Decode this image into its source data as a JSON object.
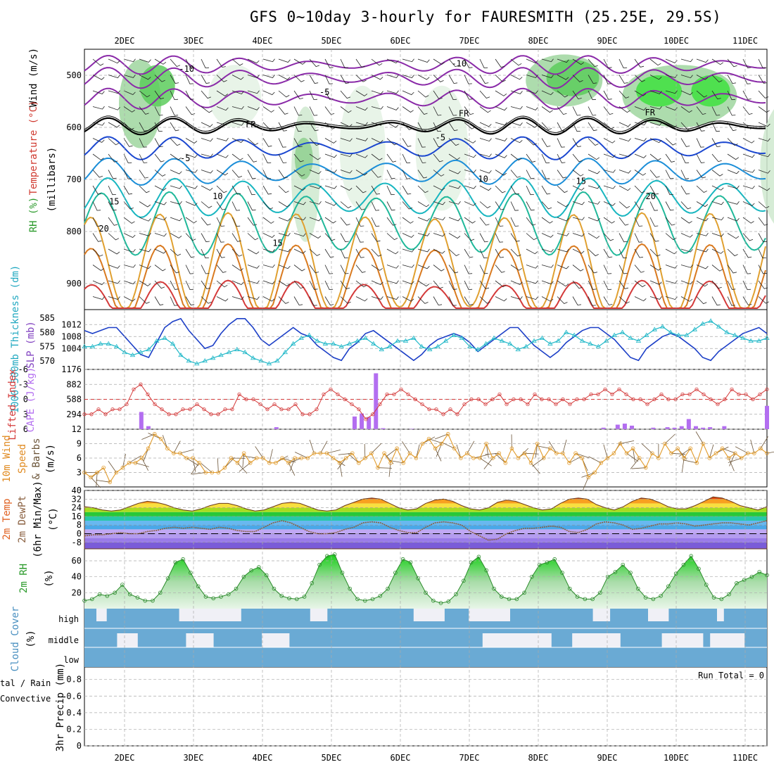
{
  "title": "GFS 0~10day 3-hourly for FAURESMITH (25.25E, 29.5S)",
  "dates": [
    "2DEC",
    "3DEC",
    "4DEC",
    "5DEC",
    "6DEC",
    "7DEC",
    "8DEC",
    "9DEC",
    "10DEC",
    "11DEC"
  ],
  "colors": {
    "sea_level_pressure": "#1c3fc7",
    "thickness": "#20b8c8",
    "lifted_index": "#d43a3a",
    "cape": "#b36ef0",
    "wind_speed": "#e09a2a",
    "barbs": "#6b5438",
    "temperature_fill_hot": "#d23a0e",
    "dewpoint": "#8a6040",
    "rh_fill": "#35c035",
    "cloud": "#6aaad4",
    "cloud_clear": "#f0f0f6"
  },
  "chart_data": [
    {
      "type": "heatmap",
      "panel": "upper-air",
      "ylabel_parts": [
        "Wind (m/s)",
        "Temperature (°C)",
        "RH (%)"
      ],
      "ylabel_units": "(millibars)",
      "y_ticks": [
        500,
        600,
        700,
        800,
        900
      ],
      "ylim": [
        950,
        450
      ],
      "isotherm_labels": [
        {
          "text": "-10",
          "date_index": 0.9,
          "level": 493
        },
        {
          "text": "-10",
          "date_index": 4.85,
          "level": 483
        },
        {
          "text": "-5",
          "date_index": 2.9,
          "level": 538
        },
        {
          "text": "FR",
          "date_index": 1.83,
          "level": 600
        },
        {
          "text": "FR",
          "date_index": 4.92,
          "level": 579
        },
        {
          "text": "FR",
          "date_index": 7.62,
          "level": 577
        },
        {
          "text": "-5",
          "date_index": 4.58,
          "level": 625
        },
        {
          "text": "-5",
          "date_index": 0.88,
          "level": 665
        },
        {
          "text": "10",
          "date_index": 1.35,
          "level": 738
        },
        {
          "text": "10",
          "date_index": 5.2,
          "level": 705
        },
        {
          "text": "15",
          "date_index": -0.15,
          "level": 748
        },
        {
          "text": "15",
          "date_index": 2.22,
          "level": 828
        },
        {
          "text": "15",
          "date_index": 6.62,
          "level": 709
        },
        {
          "text": "20",
          "date_index": -0.3,
          "level": 800
        },
        {
          "text": "20",
          "date_index": 7.63,
          "level": 738
        }
      ]
    },
    {
      "type": "line",
      "panel": "pressure-thickness",
      "series": [
        {
          "name": "SLP (mb)",
          "axis": "right",
          "values": [
            1010,
            1009,
            1010,
            1011,
            1011,
            1008,
            1005,
            1002,
            1001,
            1006,
            1011,
            1013,
            1014,
            1010,
            1007,
            1004,
            1005,
            1009,
            1012,
            1014,
            1014,
            1011,
            1007,
            1005,
            1007,
            1009,
            1011,
            1009,
            1008,
            1005,
            1003,
            1001,
            1000,
            1004,
            1006,
            1009,
            1010,
            1008,
            1006,
            1004,
            1002,
            1000,
            1002,
            1005,
            1007,
            1008,
            1009,
            1008,
            1006,
            1003,
            1005,
            1007,
            1009,
            1011,
            1011,
            1008,
            1005,
            1003,
            1001,
            1003,
            1006,
            1008,
            1010,
            1011,
            1011,
            1009,
            1007,
            1004,
            1001,
            1000,
            1004,
            1006,
            1008,
            1009,
            1008,
            1006,
            1004,
            1001,
            1000,
            1003,
            1005,
            1007,
            1009,
            1010,
            1011,
            1009
          ]
        },
        {
          "name": "1000-500mb Thickness (dm)",
          "axis": "left",
          "values": [
            575,
            575,
            576,
            576,
            575,
            573,
            572,
            573,
            574,
            577,
            578,
            576,
            572,
            570,
            569,
            570,
            571,
            572,
            573,
            574,
            573,
            571,
            570,
            569,
            570,
            573,
            576,
            578,
            579,
            577,
            576,
            576,
            575,
            576,
            577,
            578,
            576,
            574,
            575,
            577,
            577,
            578,
            575,
            574,
            575,
            577,
            579,
            578,
            575,
            574,
            576,
            578,
            577,
            576,
            574,
            575,
            577,
            578,
            576,
            577,
            580,
            579,
            577,
            576,
            575,
            577,
            579,
            580,
            578,
            577,
            579,
            581,
            582,
            580,
            579,
            579,
            581,
            583,
            584,
            582,
            580,
            579,
            578,
            577,
            577,
            578
          ]
        }
      ],
      "left_ticks": [
        570,
        575,
        580,
        585
      ],
      "left_ylim": [
        567,
        588
      ],
      "right_ticks": [
        1004,
        1008,
        1012
      ],
      "right_ylim": [
        997,
        1017
      ]
    },
    {
      "type": "bar",
      "panel": "lifted-index-cape",
      "series": [
        {
          "name": "Lifted Index",
          "axis": "left",
          "kind": "line",
          "values": [
            3,
            3,
            2,
            3,
            2,
            2,
            1,
            -2,
            -3,
            -1,
            1,
            2,
            3,
            3,
            2,
            2,
            1,
            2,
            3,
            3,
            2,
            2,
            -1,
            0,
            0,
            1,
            2,
            1,
            2,
            2,
            1,
            3,
            3,
            2,
            -1,
            -2,
            -1,
            0,
            1,
            2,
            4,
            3,
            1,
            -1,
            -1,
            -2,
            -1,
            0,
            1,
            2,
            2,
            3,
            2,
            3,
            1,
            0,
            0,
            1,
            0,
            -1,
            1,
            0,
            0,
            1,
            -1,
            0,
            0,
            1,
            0,
            1,
            0,
            0,
            -1,
            -1,
            -2,
            -1,
            -2,
            -1,
            0,
            0,
            1,
            0,
            -1,
            0,
            0,
            -1,
            -1,
            -2,
            -1,
            0,
            1,
            0,
            -2,
            -1,
            -1,
            0,
            -1,
            -2
          ]
        },
        {
          "name": "CAPE (J/kg)",
          "axis": "right",
          "kind": "bar",
          "values": [
            0,
            0,
            0,
            0,
            0,
            0,
            0,
            0,
            340,
            60,
            0,
            0,
            0,
            0,
            0,
            0,
            0,
            0,
            0,
            0,
            0,
            0,
            0,
            0,
            0,
            0,
            0,
            40,
            0,
            0,
            0,
            0,
            0,
            0,
            0,
            0,
            0,
            0,
            250,
            310,
            240,
            1100,
            20,
            0,
            0,
            0,
            10,
            0,
            0,
            0,
            0,
            0,
            0,
            0,
            0,
            0,
            0,
            0,
            0,
            0,
            0,
            0,
            0,
            0,
            0,
            0,
            0,
            0,
            0,
            0,
            0,
            0,
            0,
            30,
            0,
            90,
            110,
            70,
            0,
            0,
            30,
            0,
            40,
            30,
            60,
            200,
            60,
            30,
            40,
            0,
            60,
            0,
            0,
            0,
            0,
            0,
            460
          ]
        }
      ],
      "left_ticks": [
        -6,
        -3,
        0,
        3,
        6
      ],
      "left_ylim": [
        6,
        -6
      ],
      "right_ticks": [
        294,
        588,
        882,
        1176
      ],
      "right_ylim": [
        0,
        1176
      ]
    },
    {
      "type": "line",
      "panel": "surface-wind",
      "series": [
        {
          "name": "10m Wind Speed (m/s)",
          "values": [
            3,
            2,
            3,
            4,
            1,
            3,
            4,
            5,
            5,
            6,
            8,
            11,
            10,
            8,
            7,
            7,
            6,
            6,
            5,
            3,
            3,
            3,
            4,
            6,
            5,
            7,
            5,
            6,
            6,
            5,
            5,
            6,
            5,
            6,
            6,
            6,
            7,
            7,
            7,
            6,
            5,
            6,
            7,
            5,
            6,
            7,
            4,
            7,
            5,
            8,
            5,
            7,
            6,
            9,
            10,
            8,
            9,
            11,
            8,
            6,
            7,
            6,
            6,
            9,
            6,
            7,
            5,
            8,
            6,
            7,
            5,
            9,
            6,
            8,
            7,
            7,
            5,
            7,
            6,
            2,
            3,
            5,
            6,
            7,
            9,
            7,
            8,
            6,
            4,
            7,
            6,
            9,
            7,
            8,
            6,
            8,
            5,
            9,
            6,
            7,
            8,
            6,
            7,
            6,
            7,
            7,
            8,
            7
          ]
        }
      ],
      "ylabel": "(m/s)",
      "ticks": [
        3,
        6,
        9,
        12
      ],
      "ylim": [
        0,
        12
      ]
    },
    {
      "type": "area",
      "panel": "temperature",
      "series": [
        {
          "name": "2m Temp",
          "values": [
            25,
            24,
            22,
            21,
            22,
            25,
            28,
            30,
            29,
            27,
            24,
            22,
            21,
            23,
            26,
            28,
            28,
            26,
            23,
            21,
            22,
            25,
            28,
            29,
            28,
            25,
            22,
            21,
            22,
            26,
            29,
            32,
            33,
            32,
            28,
            24,
            22,
            23,
            28,
            31,
            32,
            30,
            26,
            23,
            22,
            24,
            29,
            31,
            30,
            27,
            24,
            22,
            23,
            28,
            32,
            33,
            32,
            27,
            24,
            22,
            25,
            30,
            33,
            32,
            29,
            25,
            23,
            23,
            26,
            30,
            34,
            33,
            30,
            26,
            24,
            22,
            25
          ]
        },
        {
          "name": "2m DewPt",
          "values": [
            -2,
            -1,
            -1,
            0,
            1,
            0,
            0,
            2,
            3,
            5,
            6,
            5,
            6,
            5,
            4,
            6,
            5,
            3,
            2,
            2,
            6,
            10,
            12,
            10,
            6,
            2,
            0,
            0,
            1,
            4,
            6,
            10,
            11,
            10,
            6,
            3,
            1,
            1,
            6,
            10,
            11,
            10,
            8,
            2,
            -2,
            -6,
            -5,
            0,
            3,
            5,
            5,
            6,
            7,
            6,
            2,
            1,
            4,
            9,
            11,
            10,
            8,
            4,
            5,
            7,
            9,
            9,
            10,
            9,
            7,
            8,
            9,
            10,
            10,
            9,
            8,
            10,
            12
          ]
        }
      ],
      "ylabel": "(°C)",
      "ticks": [
        -8,
        0,
        8,
        16,
        24,
        32,
        40
      ],
      "ylim": [
        -14,
        40
      ]
    },
    {
      "type": "area",
      "panel": "relative-humidity",
      "series": [
        {
          "name": "2m RH",
          "values": [
            10,
            12,
            18,
            16,
            20,
            30,
            18,
            14,
            10,
            10,
            20,
            38,
            58,
            62,
            45,
            28,
            15,
            13,
            15,
            18,
            25,
            40,
            48,
            52,
            42,
            25,
            16,
            13,
            12,
            15,
            32,
            55,
            66,
            68,
            45,
            25,
            12,
            10,
            12,
            16,
            25,
            45,
            62,
            58,
            38,
            20,
            10,
            7,
            9,
            18,
            35,
            58,
            65,
            48,
            25,
            15,
            12,
            12,
            20,
            40,
            55,
            58,
            62,
            45,
            25,
            15,
            12,
            12,
            20,
            40,
            46,
            55,
            45,
            25,
            14,
            12,
            16,
            28,
            44,
            55,
            66,
            50,
            30,
            14,
            12,
            18,
            32,
            36,
            40,
            46,
            42
          ]
        }
      ],
      "ylabel": "(%)",
      "ticks": [
        20,
        40,
        60
      ],
      "ylim": [
        0,
        75
      ]
    },
    {
      "type": "heatmap",
      "panel": "cloud-cover",
      "rows": [
        "high",
        "middle",
        "low"
      ],
      "ylabel": "(%)"
    },
    {
      "type": "bar",
      "panel": "precipitation",
      "ylabel": "3hr Precip (mm)",
      "series_labels": [
        "Total / Rain",
        "Convective"
      ],
      "run_total_label": "Run Total = 0",
      "ticks": [
        0,
        0.2,
        0.4,
        0.6,
        0.8
      ],
      "ylim": [
        0,
        0.95
      ],
      "values": []
    }
  ],
  "side_labels": {
    "upper_wind": "Wind (m/s)",
    "upper_temp": "Temperature (°C)",
    "upper_rh": "RH (%)",
    "upper_mb": "(millibars)",
    "thickness": "1000-500mb Thickness (dm)",
    "slp": "SLP (mb)",
    "lifted": "Lifted Index",
    "cape": "CAPE (J/kg)",
    "wind_a": "10m Wind",
    "wind_b": "Speed",
    "wind_c": "& Barbs",
    "wind_units": "(m/s)",
    "temp_a": "2m Temp",
    "temp_b": "2m DewPt",
    "temp_c": "(6hr Min/Max)",
    "temp_units": "(°C)",
    "rh_a": "2m RH",
    "rh_units": "(%)",
    "cloud_a": "Cloud Cover",
    "cloud_units": "(%)",
    "precip_a": "tal / Rain",
    "precip_b": "Convective",
    "precip_units": "3hr Precip (mm)"
  }
}
